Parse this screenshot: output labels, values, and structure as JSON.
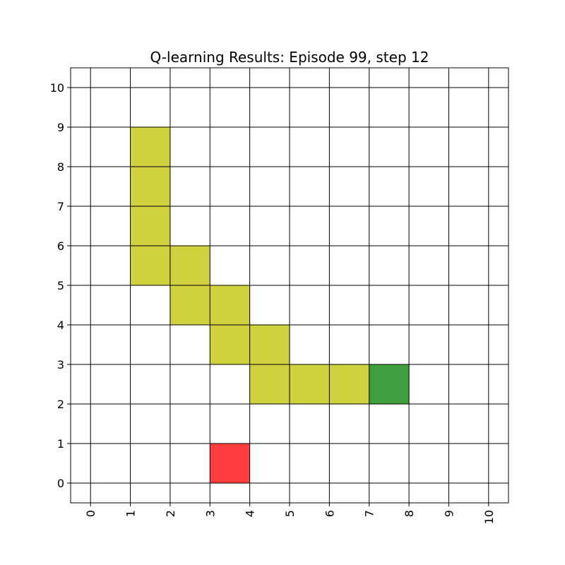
{
  "chart_data": {
    "type": "heatmap",
    "title": "Q-learning Results: Episode 99, step 12",
    "xlabel": "",
    "ylabel": "",
    "xlim": [
      -0.5,
      10.5
    ],
    "ylim": [
      -0.5,
      10.5
    ],
    "x_ticks": [
      0,
      1,
      2,
      3,
      4,
      5,
      6,
      7,
      8,
      9,
      10
    ],
    "y_ticks": [
      0,
      1,
      2,
      3,
      4,
      5,
      6,
      7,
      8,
      9,
      10
    ],
    "x_tick_labels": [
      "0",
      "1",
      "2",
      "3",
      "4",
      "5",
      "6",
      "7",
      "8",
      "9",
      "10"
    ],
    "y_tick_labels": [
      "0",
      "1",
      "2",
      "3",
      "4",
      "5",
      "6",
      "7",
      "8",
      "9",
      "10"
    ],
    "x_tick_rotation": "vertical",
    "grid": true,
    "cells": [
      {
        "role": "path",
        "x": 1,
        "y": 8
      },
      {
        "role": "path",
        "x": 1,
        "y": 7
      },
      {
        "role": "path",
        "x": 1,
        "y": 6
      },
      {
        "role": "path",
        "x": 1,
        "y": 5
      },
      {
        "role": "path",
        "x": 2,
        "y": 5
      },
      {
        "role": "path",
        "x": 2,
        "y": 4
      },
      {
        "role": "path",
        "x": 3,
        "y": 4
      },
      {
        "role": "path",
        "x": 3,
        "y": 3
      },
      {
        "role": "path",
        "x": 4,
        "y": 3
      },
      {
        "role": "path",
        "x": 4,
        "y": 2
      },
      {
        "role": "path",
        "x": 5,
        "y": 2
      },
      {
        "role": "path",
        "x": 6,
        "y": 2
      },
      {
        "role": "goal",
        "x": 7,
        "y": 2
      },
      {
        "role": "start",
        "x": 3,
        "y": 0
      }
    ],
    "colors": {
      "path": "#d1d13f",
      "goal": "#3f9f3f",
      "start": "#ff3f3f",
      "grid": "#000000",
      "background": "#ffffff"
    }
  }
}
